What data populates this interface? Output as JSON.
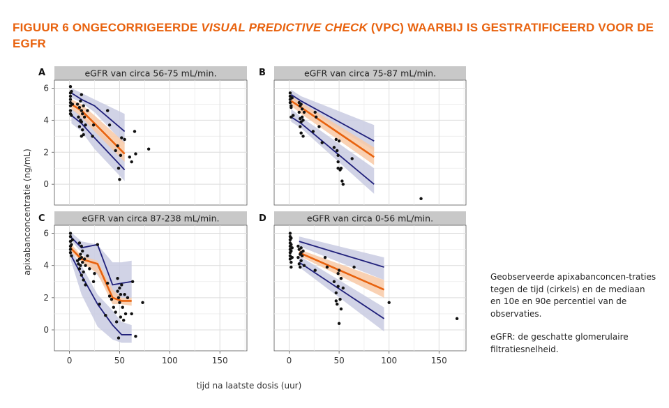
{
  "title": {
    "prefix": "FIGUUR 6  ONGECORRIGEERDE ",
    "italic": "VISUAL PREDICTIVE CHECK",
    "suffix": " (VPC) WAARBIJ IS GESTRATIFICEERD VOOR DE EGFR"
  },
  "colors": {
    "title": "#e8620e",
    "median": "#e8620e",
    "median_band": "#f8c9a6",
    "percentile": "#1f1f7a",
    "percentile_band": "#c9cbe2",
    "strip": "#c8c8c8",
    "points": "#111111"
  },
  "note": {
    "p1": "Geobserveerde apixabanconcen-traties tegen de tijd (cirkels) en de mediaan en 10e en 90e percentiel van de observaties.",
    "p2": "eGFR: de geschatte glomerulaire filtratiesnelheid."
  },
  "chart_data": [
    {
      "type": "scatter",
      "panel": "A",
      "title": "eGFR van circa 56-75 mL/min.",
      "xlabel": "tijd na laatste dosis (uur)",
      "ylabel": "apixabanconcentratie (ng/mL)",
      "xlim": [
        -15,
        177
      ],
      "ylim": [
        -1.3,
        6.5
      ],
      "xticks": [
        0,
        50,
        100,
        150
      ],
      "yticks": [
        0,
        2,
        4,
        6
      ],
      "grid": true,
      "median": {
        "x": [
          2,
          12,
          25,
          55
        ],
        "y": [
          5.0,
          4.6,
          3.8,
          1.9
        ]
      },
      "median_band": {
        "x": [
          2,
          12,
          25,
          55
        ],
        "lower": [
          4.7,
          4.2,
          3.3,
          1.4
        ],
        "upper": [
          5.3,
          5.0,
          4.3,
          2.6
        ]
      },
      "p10": {
        "x": [
          2,
          12,
          25,
          55
        ],
        "y": [
          4.3,
          3.8,
          2.9,
          0.9
        ]
      },
      "p90": {
        "x": [
          2,
          12,
          25,
          55
        ],
        "y": [
          5.7,
          5.3,
          4.9,
          3.3
        ]
      },
      "band_10": {
        "x": [
          2,
          12,
          25,
          55
        ],
        "lower": [
          3.8,
          3.3,
          2.2,
          0.2
        ],
        "upper": [
          4.7,
          4.3,
          3.6,
          1.8
        ]
      },
      "band_90": {
        "x": [
          2,
          12,
          25,
          55
        ],
        "lower": [
          5.4,
          5.1,
          4.5,
          2.5
        ],
        "upper": [
          6.0,
          5.7,
          5.3,
          4.4
        ]
      },
      "points": [
        [
          1,
          6.1
        ],
        [
          1,
          5.7
        ],
        [
          1,
          5.5
        ],
        [
          1,
          5.3
        ],
        [
          1,
          5.1
        ],
        [
          1,
          4.9
        ],
        [
          1,
          4.6
        ],
        [
          1,
          4.4
        ],
        [
          2,
          5.8
        ],
        [
          2,
          4.3
        ],
        [
          3,
          5.0
        ],
        [
          8,
          5.0
        ],
        [
          9,
          4.2
        ],
        [
          10,
          4.8
        ],
        [
          10,
          3.6
        ],
        [
          11,
          5.2
        ],
        [
          11,
          4.0
        ],
        [
          12,
          5.6
        ],
        [
          12,
          4.6
        ],
        [
          12,
          3.9
        ],
        [
          12,
          3.0
        ],
        [
          13,
          4.4
        ],
        [
          13,
          3.4
        ],
        [
          14,
          4.9
        ],
        [
          14,
          3.1
        ],
        [
          15,
          4.2
        ],
        [
          16,
          3.7
        ],
        [
          18,
          4.6
        ],
        [
          23,
          3.0
        ],
        [
          24,
          3.7
        ],
        [
          38,
          4.6
        ],
        [
          40,
          3.7
        ],
        [
          46,
          2.1
        ],
        [
          48,
          2.4
        ],
        [
          49,
          1.0
        ],
        [
          50,
          0.3
        ],
        [
          51,
          1.8
        ],
        [
          52,
          2.9
        ],
        [
          55,
          2.8
        ],
        [
          60,
          1.7
        ],
        [
          62,
          1.4
        ],
        [
          65,
          3.3
        ],
        [
          66,
          1.9
        ],
        [
          79,
          2.2
        ]
      ]
    },
    {
      "type": "scatter",
      "panel": "B",
      "title": "eGFR van circa 75-87 mL/min.",
      "xlabel": "tijd na laatste dosis (uur)",
      "ylabel": "apixabanconcentratie (ng/mL)",
      "xlim": [
        -15,
        177
      ],
      "ylim": [
        -1.3,
        6.5
      ],
      "xticks": [
        0,
        50,
        100,
        150
      ],
      "yticks": [
        0,
        2,
        4,
        6
      ],
      "grid": true,
      "median": {
        "x": [
          2,
          12,
          85
        ],
        "y": [
          5.2,
          4.8,
          1.7
        ]
      },
      "median_band": {
        "x": [
          2,
          12,
          85
        ],
        "lower": [
          4.9,
          4.4,
          1.2
        ],
        "upper": [
          5.5,
          5.1,
          2.3
        ]
      },
      "p10": {
        "x": [
          2,
          12,
          85
        ],
        "y": [
          4.2,
          3.8,
          0.0
        ]
      },
      "p90": {
        "x": [
          2,
          12,
          85
        ],
        "y": [
          5.6,
          5.2,
          2.7
        ]
      },
      "band_10": {
        "x": [
          2,
          12,
          85
        ],
        "lower": [
          3.9,
          3.5,
          -0.6
        ],
        "upper": [
          4.7,
          4.2,
          1.0
        ]
      },
      "band_90": {
        "x": [
          2,
          12,
          85
        ],
        "lower": [
          5.3,
          4.9,
          2.1
        ],
        "upper": [
          5.9,
          5.5,
          3.7
        ]
      },
      "points": [
        [
          1,
          5.7
        ],
        [
          1,
          5.5
        ],
        [
          1,
          5.3
        ],
        [
          1,
          5.1
        ],
        [
          2,
          4.9
        ],
        [
          2,
          4.8
        ],
        [
          2,
          4.2
        ],
        [
          3,
          5.4
        ],
        [
          4,
          4.3
        ],
        [
          10,
          5.1
        ],
        [
          10,
          4.5
        ],
        [
          11,
          4.9
        ],
        [
          11,
          4.1
        ],
        [
          11,
          3.6
        ],
        [
          12,
          5.0
        ],
        [
          12,
          3.9
        ],
        [
          12,
          3.2
        ],
        [
          13,
          4.7
        ],
        [
          13,
          4.2
        ],
        [
          14,
          4.0
        ],
        [
          14,
          3.0
        ],
        [
          15,
          4.5
        ],
        [
          24,
          3.3
        ],
        [
          26,
          4.5
        ],
        [
          27,
          4.2
        ],
        [
          30,
          3.6
        ],
        [
          33,
          2.6
        ],
        [
          45,
          2.3
        ],
        [
          47,
          2.8
        ],
        [
          48,
          2.1
        ],
        [
          49,
          1.8
        ],
        [
          49,
          1.4
        ],
        [
          49,
          1.0
        ],
        [
          50,
          2.7
        ],
        [
          51,
          0.9
        ],
        [
          52,
          1.0
        ],
        [
          53,
          0.2
        ],
        [
          54,
          0.0
        ],
        [
          63,
          1.6
        ],
        [
          132,
          -0.9
        ]
      ]
    },
    {
      "type": "scatter",
      "panel": "C",
      "title": "eGFR van circa 87-238 mL/min.",
      "xlabel": "tijd na laatste dosis (uur)",
      "ylabel": "apixabanconcentratie (ng/mL)",
      "xlim": [
        -15,
        177
      ],
      "ylim": [
        -1.3,
        6.5
      ],
      "xticks": [
        0,
        50,
        100,
        150
      ],
      "yticks": [
        0,
        2,
        4,
        6
      ],
      "grid": true,
      "median": {
        "x": [
          1,
          12,
          28,
          43,
          52,
          62
        ],
        "y": [
          5.1,
          4.4,
          4.1,
          2.0,
          1.8,
          1.8
        ]
      },
      "median_band": {
        "x": [
          1,
          12,
          28,
          43,
          52,
          62
        ],
        "lower": [
          4.9,
          4.2,
          3.5,
          1.6,
          1.6,
          1.5
        ],
        "upper": [
          5.4,
          4.6,
          4.3,
          2.5,
          2.0,
          2.0
        ]
      },
      "p10": {
        "x": [
          1,
          12,
          28,
          43,
          52,
          62
        ],
        "y": [
          4.7,
          3.4,
          1.6,
          0.3,
          -0.3,
          -0.3
        ]
      },
      "p90": {
        "x": [
          1,
          12,
          28,
          43,
          52,
          62
        ],
        "y": [
          5.8,
          5.1,
          5.3,
          2.8,
          2.9,
          3.0
        ]
      },
      "band_10": {
        "x": [
          1,
          12,
          28,
          43,
          52,
          62
        ],
        "lower": [
          4.4,
          2.2,
          0.2,
          -0.6,
          -0.8,
          -0.8
        ],
        "upper": [
          5.0,
          4.0,
          2.2,
          1.2,
          0.5,
          0.3
        ]
      },
      "band_90": {
        "x": [
          1,
          12,
          28,
          43,
          52,
          62
        ],
        "lower": [
          5.6,
          4.8,
          3.4,
          2.0,
          2.0,
          2.0
        ],
        "upper": [
          6.1,
          5.5,
          5.3,
          4.2,
          4.2,
          4.3
        ]
      },
      "points": [
        [
          1,
          6.0
        ],
        [
          1,
          5.8
        ],
        [
          1,
          5.5
        ],
        [
          1,
          5.2
        ],
        [
          1,
          5.0
        ],
        [
          1,
          4.8
        ],
        [
          2,
          4.6
        ],
        [
          2,
          5.3
        ],
        [
          3,
          5.6
        ],
        [
          8,
          4.3
        ],
        [
          9,
          4.1
        ],
        [
          10,
          5.4
        ],
        [
          10,
          4.4
        ],
        [
          10,
          3.8
        ],
        [
          11,
          4.7
        ],
        [
          11,
          4.0
        ],
        [
          12,
          5.2
        ],
        [
          12,
          4.5
        ],
        [
          12,
          3.4
        ],
        [
          13,
          4.9
        ],
        [
          13,
          4.2
        ],
        [
          14,
          3.6
        ],
        [
          14,
          3.1
        ],
        [
          15,
          4.4
        ],
        [
          16,
          4.0
        ],
        [
          16,
          2.8
        ],
        [
          18,
          4.6
        ],
        [
          20,
          3.8
        ],
        [
          24,
          3.0
        ],
        [
          25,
          3.5
        ],
        [
          28,
          5.3
        ],
        [
          30,
          1.6
        ],
        [
          36,
          0.9
        ],
        [
          38,
          2.9
        ],
        [
          40,
          2.1
        ],
        [
          42,
          1.9
        ],
        [
          44,
          1.4
        ],
        [
          46,
          1.1
        ],
        [
          47,
          0.5
        ],
        [
          48,
          2.4
        ],
        [
          48,
          3.2
        ],
        [
          49,
          2.0
        ],
        [
          49,
          -0.5
        ],
        [
          50,
          2.6
        ],
        [
          50,
          1.7
        ],
        [
          51,
          0.8
        ],
        [
          51,
          2.2
        ],
        [
          52,
          2.8
        ],
        [
          53,
          1.4
        ],
        [
          54,
          0.6
        ],
        [
          55,
          2.2
        ],
        [
          56,
          1.0
        ],
        [
          58,
          2.0
        ],
        [
          62,
          1.0
        ],
        [
          63,
          3.0
        ],
        [
          66,
          -0.4
        ],
        [
          73,
          1.7
        ]
      ]
    },
    {
      "type": "scatter",
      "panel": "D",
      "title": "eGFR van circa 0-56 mL/min.",
      "xlabel": "tijd na laatste dosis (uur)",
      "ylabel": "apixabanconcentratie (ng/mL)",
      "xlim": [
        -15,
        177
      ],
      "ylim": [
        -1.3,
        6.5
      ],
      "xticks": [
        0,
        50,
        100,
        150
      ],
      "yticks": [
        0,
        2,
        4,
        6
      ],
      "grid": true,
      "median": {
        "x": [
          10,
          95
        ],
        "y": [
          4.8,
          2.5
        ]
      },
      "median_band": {
        "x": [
          10,
          95
        ],
        "lower": [
          4.6,
          2.0
        ],
        "upper": [
          5.0,
          3.1
        ]
      },
      "p10": {
        "x": [
          10,
          95
        ],
        "y": [
          4.2,
          0.7
        ]
      },
      "p90": {
        "x": [
          10,
          95
        ],
        "y": [
          5.5,
          3.9
        ]
      },
      "band_10": {
        "x": [
          10,
          95
        ],
        "lower": [
          3.9,
          -0.1
        ],
        "upper": [
          4.6,
          1.4
        ]
      },
      "band_90": {
        "x": [
          10,
          95
        ],
        "lower": [
          5.2,
          3.1
        ],
        "upper": [
          5.8,
          4.5
        ]
      },
      "points": [
        [
          1,
          6.0
        ],
        [
          1,
          5.8
        ],
        [
          1,
          5.6
        ],
        [
          1,
          5.4
        ],
        [
          1,
          5.2
        ],
        [
          1,
          5.0
        ],
        [
          1,
          4.8
        ],
        [
          1,
          4.6
        ],
        [
          1,
          4.4
        ],
        [
          2,
          5.7
        ],
        [
          2,
          5.3
        ],
        [
          2,
          4.9
        ],
        [
          2,
          4.2
        ],
        [
          3,
          5.1
        ],
        [
          3,
          4.5
        ],
        [
          2,
          3.9
        ],
        [
          9,
          5.2
        ],
        [
          9,
          4.5
        ],
        [
          10,
          5.0
        ],
        [
          10,
          4.1
        ],
        [
          11,
          4.7
        ],
        [
          11,
          3.9
        ],
        [
          12,
          5.1
        ],
        [
          12,
          4.3
        ],
        [
          12,
          4.8
        ],
        [
          13,
          4.6
        ],
        [
          14,
          4.9
        ],
        [
          15,
          4.0
        ],
        [
          26,
          3.7
        ],
        [
          36,
          4.5
        ],
        [
          38,
          3.9
        ],
        [
          45,
          3.0
        ],
        [
          47,
          2.3
        ],
        [
          47,
          1.8
        ],
        [
          48,
          1.6
        ],
        [
          49,
          3.5
        ],
        [
          49,
          2.7
        ],
        [
          50,
          3.7
        ],
        [
          50,
          0.4
        ],
        [
          51,
          1.9
        ],
        [
          52,
          1.3
        ],
        [
          52,
          3.2
        ],
        [
          54,
          2.6
        ],
        [
          65,
          3.9
        ],
        [
          100,
          1.7
        ],
        [
          168,
          0.7
        ]
      ]
    }
  ]
}
